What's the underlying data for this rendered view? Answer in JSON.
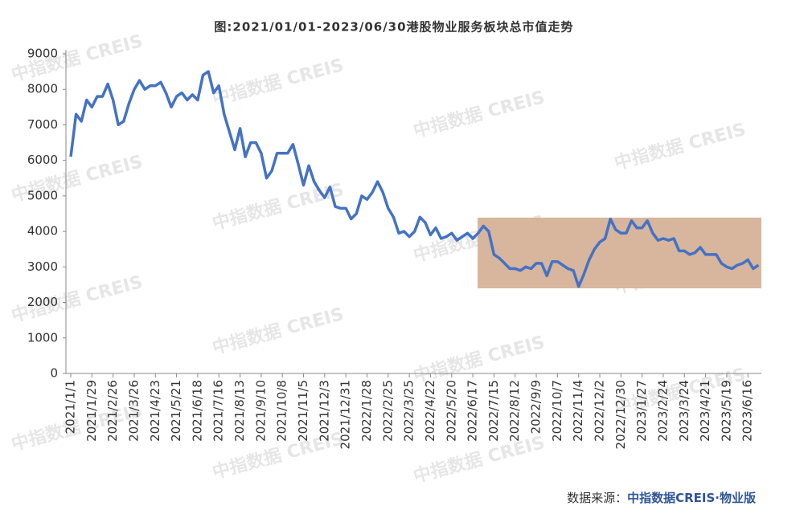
{
  "chart_data": {
    "type": "line",
    "title": "图:2021/01/01-2023/06/30港股物业服务板块总市值走势",
    "source_label": "数据来源：",
    "source": "中指数据CREIS·物业版",
    "watermark": "中指数据 CREIS",
    "categories": [
      "2021/1/1",
      null,
      null,
      null,
      "2021/1/29",
      null,
      null,
      null,
      "2021/2/26",
      null,
      null,
      null,
      "2021/3/26",
      null,
      null,
      null,
      "2021/4/23",
      null,
      null,
      null,
      "2021/5/21",
      null,
      null,
      null,
      "2021/6/18",
      null,
      null,
      null,
      "2021/7/16",
      null,
      null,
      null,
      "2021/8/13",
      null,
      null,
      null,
      "2021/9/10",
      null,
      null,
      null,
      "2021/10/8",
      null,
      null,
      null,
      "2021/11/5",
      null,
      null,
      null,
      "2021/12/3",
      null,
      null,
      null,
      "2021/12/31",
      null,
      null,
      null,
      "2022/1/28",
      null,
      null,
      null,
      "2022/2/25",
      null,
      null,
      null,
      "2022/3/25",
      null,
      null,
      null,
      "2022/4/22",
      null,
      null,
      null,
      "2022/5/20",
      null,
      null,
      null,
      "2022/6/17",
      null,
      null,
      null,
      "2022/7/15",
      null,
      null,
      null,
      "2022/8/12",
      null,
      null,
      null,
      "2022/9/9",
      null,
      null,
      null,
      "2022/10/7",
      null,
      null,
      null,
      "2022/11/4",
      null,
      null,
      null,
      "2022/12/2",
      null,
      null,
      null,
      "2022/12/30",
      null,
      null,
      null,
      "2023/1/27",
      null,
      null,
      null,
      "2023/2/24",
      null,
      null,
      null,
      "2023/3/24",
      null,
      null,
      null,
      "2023/4/21",
      null,
      null,
      null,
      "2023/5/19",
      null,
      null,
      null,
      "2023/6/16",
      null,
      null
    ],
    "series": [
      {
        "color": "#4472c4",
        "values": [
          6100,
          7300,
          7100,
          7700,
          7500,
          7800,
          7800,
          8150,
          7700,
          7000,
          7100,
          7600,
          8000,
          8250,
          8000,
          8100,
          8100,
          8200,
          7900,
          7500,
          7800,
          7900,
          7700,
          7850,
          7700,
          8400,
          8500,
          7900,
          8100,
          7300,
          6800,
          6300,
          6900,
          6100,
          6500,
          6500,
          6200,
          5500,
          5700,
          6200,
          6200,
          6200,
          6450,
          5900,
          5300,
          5850,
          5400,
          5150,
          4950,
          5250,
          4700,
          4650,
          4650,
          4350,
          4500,
          5000,
          4900,
          5100,
          5400,
          5100,
          4650,
          4400,
          3950,
          4000,
          3850,
          4000,
          4400,
          4250,
          3900,
          4100,
          3800,
          3850,
          3950,
          3750,
          3850,
          3950,
          3800,
          3950,
          4150,
          4000,
          3350,
          3250,
          3100,
          2950,
          2950,
          2900,
          3000,
          2950,
          3100,
          3100,
          2750,
          3150,
          3150,
          3050,
          2950,
          2900,
          2450,
          2800,
          3200,
          3500,
          3700,
          3800,
          4350,
          4050,
          3950,
          3950,
          4300,
          4100,
          4100,
          4300,
          3950,
          3750,
          3800,
          3750,
          3800,
          3450,
          3450,
          3350,
          3400,
          3550,
          3350,
          3350,
          3350,
          3100,
          3000,
          2950,
          3050,
          3100,
          3200,
          2950,
          3050
        ]
      }
    ],
    "ylim": [
      0,
      9000
    ],
    "yticks": [
      0,
      1000,
      2000,
      3000,
      4000,
      5000,
      6000,
      7000,
      8000,
      9000
    ],
    "grid": false
  }
}
